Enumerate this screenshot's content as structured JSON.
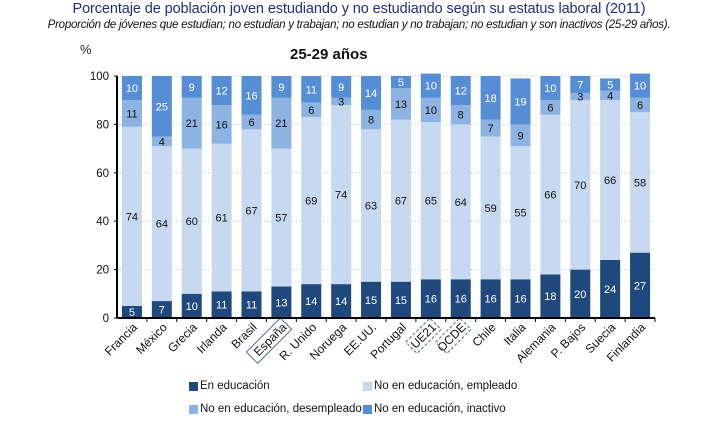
{
  "header": {
    "title": "Porcentaje de población joven estudiando y no estudiando según su estatus laboral (2011)",
    "subtitle": "Proporción de jóvenes que estudian; no estudian y trabajan; no estudian y no trabajan; no estudian y son inactivos (25-29 años)."
  },
  "chart_data": {
    "type": "bar",
    "stacked": true,
    "title": "25-29 años",
    "ylabel": "%",
    "xlabel": "",
    "ylim": [
      0,
      100
    ],
    "yticks": [
      0,
      20,
      40,
      60,
      80,
      100
    ],
    "grid": true,
    "categories": [
      "Francia",
      "México",
      "Grecia",
      "Irlanda",
      "Brasil",
      "España",
      "R. Unido",
      "Noruega",
      "EE.UU.",
      "Portugal",
      "UE21",
      "OCDE",
      "Chile",
      "Italia",
      "Alemania",
      "P. Bajos",
      "Suecia",
      "Finlandia"
    ],
    "highlighted_categories": {
      "España": "solid-box",
      "UE21": "dashed-box",
      "OCDE": "dashed-box"
    },
    "series": [
      {
        "name": "En educación",
        "color": "#1f497d",
        "label_color": "#ffffff",
        "values": [
          5,
          7,
          10,
          11,
          11,
          13,
          14,
          14,
          15,
          15,
          16,
          16,
          16,
          16,
          18,
          20,
          24,
          27
        ]
      },
      {
        "name": "No en educación, empleado",
        "color": "#c6d9f0",
        "label_color": "#111111",
        "values": [
          74,
          64,
          60,
          61,
          67,
          57,
          69,
          74,
          63,
          67,
          65,
          64,
          59,
          55,
          66,
          70,
          66,
          58
        ]
      },
      {
        "name": "No en educación, desempleado",
        "color": "#8db3e2",
        "label_color": "#111111",
        "values": [
          11,
          4,
          21,
          16,
          6,
          21,
          6,
          3,
          8,
          13,
          10,
          8,
          7,
          9,
          6,
          3,
          4,
          6
        ]
      },
      {
        "name": "No en educación, inactivo",
        "color": "#558ed5",
        "label_color": "#ffffff",
        "values": [
          10,
          25,
          9,
          12,
          16,
          9,
          11,
          9,
          14,
          5,
          10,
          12,
          18,
          19,
          10,
          7,
          5,
          10
        ]
      }
    ],
    "legend": "bottom"
  }
}
